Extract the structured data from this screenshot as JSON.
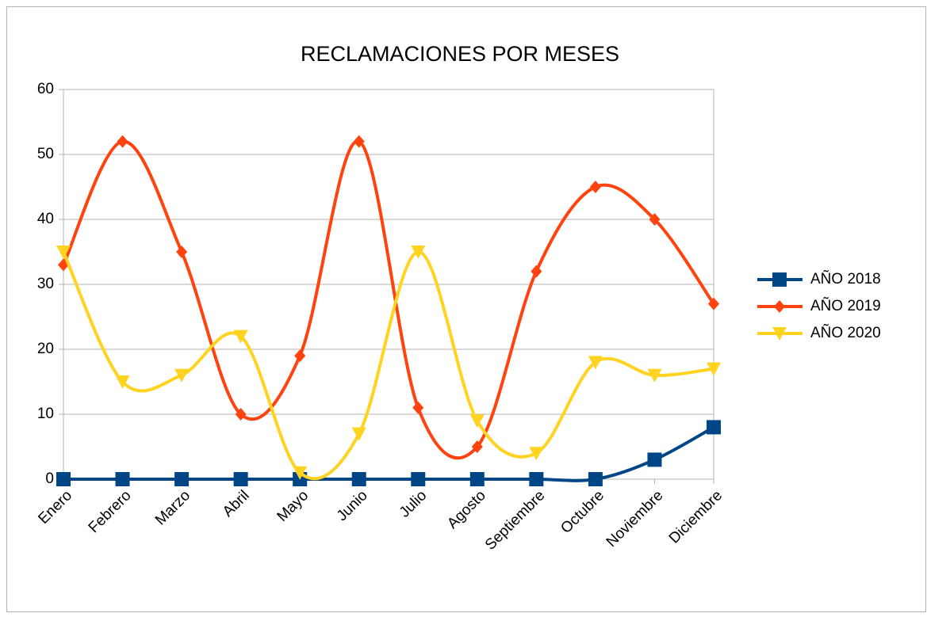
{
  "chart_data": {
    "type": "line",
    "title": "RECLAMACIONES POR MESES",
    "categories": [
      "Enero",
      "Febrero",
      "Marzo",
      "Abril",
      "Mayo",
      "Junio",
      "Julio",
      "Agosto",
      "Septiembre",
      "Octubre",
      "Noviembre",
      "Diciembre"
    ],
    "series": [
      {
        "name": "AÑO 2018",
        "color": "#004586",
        "marker": "square",
        "values": [
          0,
          0,
          0,
          0,
          0,
          0,
          0,
          0,
          0,
          0,
          3,
          8
        ]
      },
      {
        "name": "AÑO 2019",
        "color": "#ff420e",
        "marker": "diamond",
        "values": [
          33,
          52,
          35,
          10,
          19,
          52,
          11,
          5,
          32,
          45,
          40,
          27
        ]
      },
      {
        "name": "AÑO 2020",
        "color": "#ffd320",
        "marker": "triangle-down",
        "values": [
          35,
          15,
          16,
          22,
          1,
          7,
          35,
          9,
          4,
          18,
          16,
          17
        ]
      }
    ],
    "ylim": [
      0,
      60
    ],
    "yticks": [
      0,
      10,
      20,
      30,
      40,
      50,
      60
    ],
    "grid": true,
    "smooth": true,
    "legend": "right"
  }
}
